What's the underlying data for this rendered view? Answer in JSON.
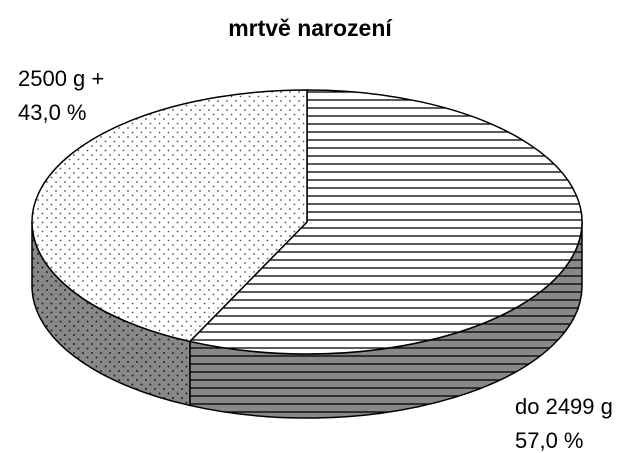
{
  "chart_data": {
    "type": "pie",
    "title": "mrtvě narození",
    "categories": [
      "do 2499 g",
      "2500 g +"
    ],
    "values": [
      57,
      43
    ],
    "value_labels": [
      "57,0 %",
      "43,0 %"
    ]
  }
}
